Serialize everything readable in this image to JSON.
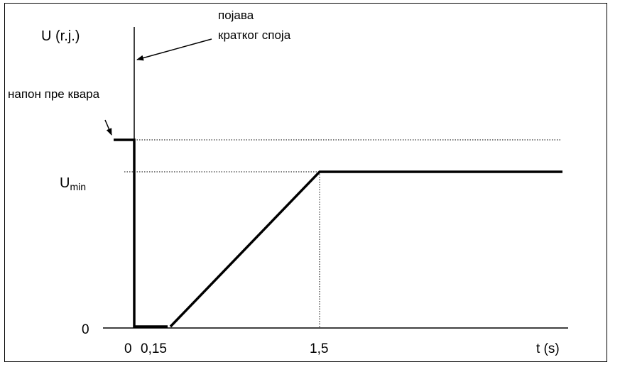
{
  "labels": {
    "y_axis": "U (r.j.)",
    "fault_annotation_line1": "појава",
    "fault_annotation_line2": "кратког споја",
    "prefault_voltage": "напон пре квара",
    "u_min_main": "U",
    "u_min_sub": "min",
    "y_zero": "0",
    "x_zero": "0",
    "x_015": "0,15",
    "x_15": "1,5",
    "x_axis": "t (s)"
  },
  "colors": {
    "line": "#000000",
    "background": "#ffffff"
  }
}
